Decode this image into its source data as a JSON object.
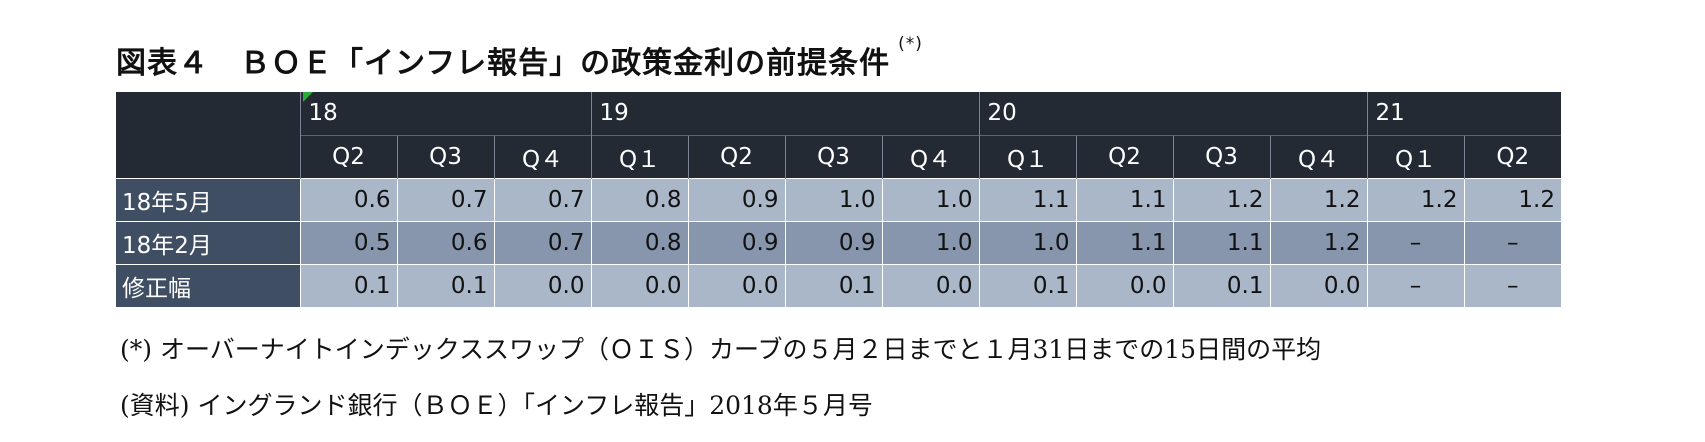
{
  "title": {
    "text": "図表４　ＢＯＥ「インフレ報告」の政策金利の前提条件",
    "note_mark": "(*)"
  },
  "table": {
    "years": [
      {
        "label": "18",
        "span": 3
      },
      {
        "label": "19",
        "span": 4
      },
      {
        "label": "20",
        "span": 4
      },
      {
        "label": "21",
        "span": 2
      }
    ],
    "quarters": [
      "Q2",
      "Q3",
      "Q４",
      "Q１",
      "Q2",
      "Q3",
      "Q４",
      "Q１",
      "Q2",
      "Q3",
      "Q４",
      "Q１",
      "Q2"
    ],
    "rows": [
      {
        "label": "18年5月",
        "shade": "light",
        "values": [
          "0.6",
          "0.7",
          "0.7",
          "0.8",
          "0.9",
          "1.0",
          "1.0",
          "1.1",
          "1.1",
          "1.2",
          "1.2",
          "1.2",
          "1.2"
        ]
      },
      {
        "label": "18年2月",
        "shade": "mid",
        "values": [
          "0.5",
          "0.6",
          "0.7",
          "0.8",
          "0.9",
          "0.9",
          "1.0",
          "1.0",
          "1.1",
          "1.1",
          "1.2",
          "–",
          "–"
        ]
      },
      {
        "label": "修正幅",
        "shade": "light",
        "values": [
          "0.1",
          "0.1",
          "0.0",
          "0.0",
          "0.0",
          "0.1",
          "0.0",
          "0.1",
          "0.0",
          "0.1",
          "0.0",
          "–",
          "–"
        ]
      }
    ]
  },
  "notes": {
    "note1": "(*) オーバーナイトインデックススワップ（ＯＩＳ）カーブの５月２日までと１月31日までの15日間の平均",
    "note2": "(資料) イングランド銀行（ＢＯＥ）「インフレ報告」2018年５月号"
  },
  "colors": {
    "header_bg": "#232a34",
    "row_label_bg": "#3f4e63",
    "cell_light": "#aab7c9",
    "cell_mid": "#8796ad"
  }
}
